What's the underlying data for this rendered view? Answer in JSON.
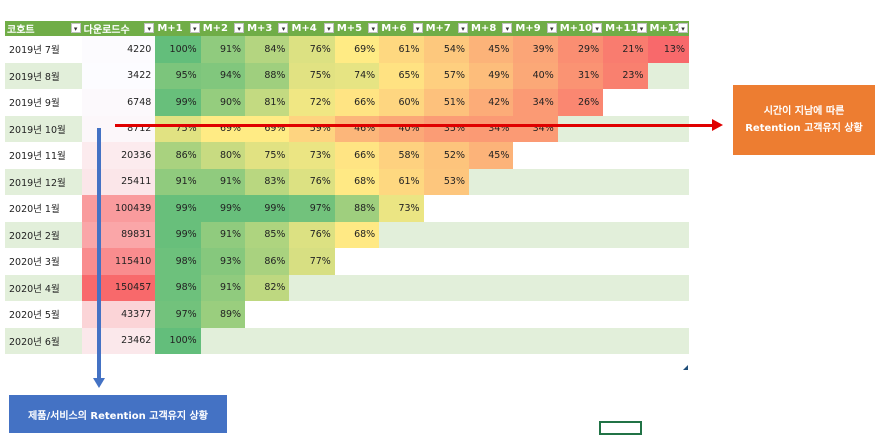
{
  "headers": [
    "코호트",
    "다운로드수",
    "M+1",
    "M+2",
    "M+3",
    "M+4",
    "M+5",
    "M+6",
    "M+7",
    "M+8",
    "M+9",
    "M+10",
    "M+11",
    "M+12"
  ],
  "dropdown_glyph": "▾",
  "rows": [
    {
      "cohort": "2019년 7월",
      "downloads": "4220",
      "vals": [
        "100%",
        "91%",
        "84%",
        "76%",
        "69%",
        "61%",
        "54%",
        "45%",
        "39%",
        "29%",
        "21%",
        "13%"
      ]
    },
    {
      "cohort": "2019년 8월",
      "downloads": "3422",
      "vals": [
        "95%",
        "94%",
        "88%",
        "75%",
        "74%",
        "65%",
        "57%",
        "49%",
        "40%",
        "31%",
        "23%"
      ]
    },
    {
      "cohort": "2019년 9월",
      "downloads": "6748",
      "vals": [
        "99%",
        "90%",
        "81%",
        "72%",
        "66%",
        "60%",
        "51%",
        "42%",
        "34%",
        "26%"
      ]
    },
    {
      "cohort": "2019년 10월",
      "downloads": "8712",
      "vals": [
        "75%",
        "69%",
        "69%",
        "59%",
        "46%",
        "40%",
        "35%",
        "34%",
        "34%"
      ]
    },
    {
      "cohort": "2019년 11월",
      "downloads": "20336",
      "vals": [
        "86%",
        "80%",
        "75%",
        "73%",
        "66%",
        "58%",
        "52%",
        "45%"
      ]
    },
    {
      "cohort": "2019년 12월",
      "downloads": "25411",
      "vals": [
        "91%",
        "91%",
        "83%",
        "76%",
        "68%",
        "61%",
        "53%"
      ]
    },
    {
      "cohort": "2020년 1월",
      "downloads": "100439",
      "vals": [
        "99%",
        "99%",
        "99%",
        "97%",
        "88%",
        "73%"
      ]
    },
    {
      "cohort": "2020년 2월",
      "downloads": "89831",
      "vals": [
        "99%",
        "91%",
        "85%",
        "76%",
        "68%"
      ]
    },
    {
      "cohort": "2020년 3월",
      "downloads": "115410",
      "vals": [
        "98%",
        "93%",
        "86%",
        "77%"
      ]
    },
    {
      "cohort": "2020년 4월",
      "downloads": "150457",
      "vals": [
        "98%",
        "91%",
        "82%"
      ]
    },
    {
      "cohort": "2020년 5월",
      "downloads": "43377",
      "vals": [
        "97%",
        "89%"
      ]
    },
    {
      "cohort": "2020년 6월",
      "downloads": "23462",
      "vals": [
        "100%"
      ]
    }
  ],
  "callouts": {
    "time_line1": "시간이 지남에 따른",
    "time_line2": "Retention 고객유지 상황",
    "product": "제품/서비스의 Retention 고객유지 상황"
  },
  "colors": {
    "header_green": "#70ad47",
    "band_green": "#e2efda",
    "scale_red": "#f8696b",
    "scale_yellow": "#ffeb84",
    "scale_green": "#63be7b",
    "arrow_red": "#e00000",
    "arrow_blue": "#4472c4",
    "callout_orange": "#ed7d31"
  }
}
